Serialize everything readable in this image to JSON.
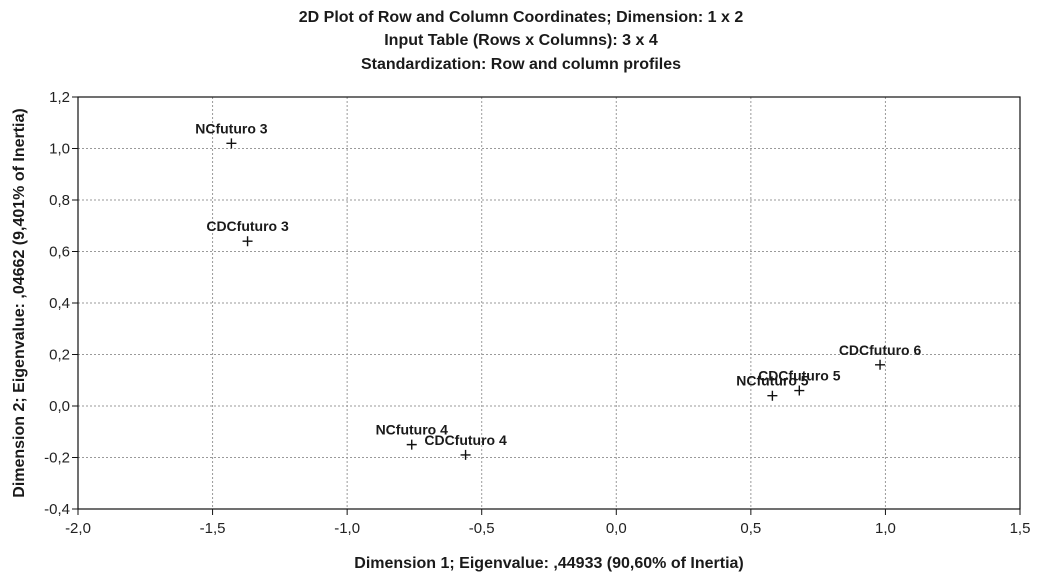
{
  "chart_data": {
    "type": "scatter",
    "title_lines": [
      "2D Plot of Row and Column Coordinates; Dimension: 1 x 2",
      "Input Table (Rows x Columns): 3 x 4",
      "Standardization: Row and column profiles"
    ],
    "xlabel": "Dimension 1; Eigenvalue: ,44933 (90,60% of Inertia)",
    "ylabel": "Dimension 2; Eigenvalue: ,04662 (9,401% of Inertia)",
    "xlim": [
      -2.0,
      1.5
    ],
    "ylim": [
      -0.4,
      1.2
    ],
    "xticks": [
      -2.0,
      -1.5,
      -1.0,
      -0.5,
      0.0,
      0.5,
      1.0,
      1.5
    ],
    "xtick_labels": [
      "-2,0",
      "-1,5",
      "-1,0",
      "-0,5",
      "0,0",
      "0,5",
      "1,0",
      "1,5"
    ],
    "yticks": [
      -0.4,
      -0.2,
      0.0,
      0.2,
      0.4,
      0.6,
      0.8,
      1.0,
      1.2
    ],
    "ytick_labels": [
      "-0,4",
      "-0,2",
      "0,0",
      "0,2",
      "0,4",
      "0,6",
      "0,8",
      "1,0",
      "1,2"
    ],
    "grid": true,
    "points": [
      {
        "label": "NCfuturo 3",
        "x": -1.43,
        "y": 1.02
      },
      {
        "label": "CDCfuturo 3",
        "x": -1.37,
        "y": 0.64
      },
      {
        "label": "NCfuturo 4",
        "x": -0.76,
        "y": -0.15
      },
      {
        "label": "CDCfuturo 4",
        "x": -0.56,
        "y": -0.19
      },
      {
        "label": "NCfuturo 5",
        "x": 0.58,
        "y": 0.04
      },
      {
        "label": "CDCfuturo 5",
        "x": 0.68,
        "y": 0.06
      },
      {
        "label": "CDCfuturo 6",
        "x": 0.98,
        "y": 0.16
      }
    ]
  }
}
